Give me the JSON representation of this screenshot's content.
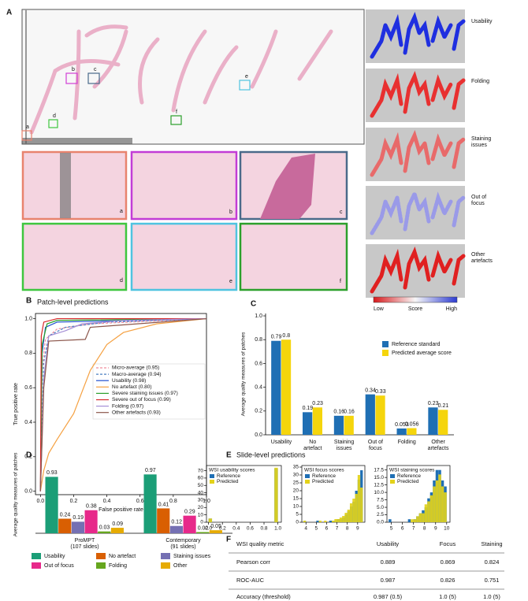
{
  "panel_labels": [
    "A",
    "B",
    "C",
    "D",
    "E",
    "F"
  ],
  "panel_a": {
    "region_labels": [
      "a",
      "b",
      "c",
      "d",
      "e",
      "f"
    ],
    "thumbnail_labels": [
      "a",
      "b",
      "c",
      "d",
      "e",
      "f"
    ],
    "heatmap_labels": [
      "Usability",
      "Folding",
      "Staining\nissues",
      "Out of\nfocus",
      "Other\nartefacts"
    ],
    "colorbar": {
      "low": "Low",
      "title": "Score",
      "high": "High"
    }
  },
  "slide_level_title": "Slide-level predictions",
  "chart_data": [
    {
      "type": "roc",
      "title": "Patch-level predictions",
      "x_label": "False positive rate",
      "y_label": "True positive rate",
      "xlim": [
        -0.03,
        1.0
      ],
      "ylim": [
        -0.02,
        1.03
      ],
      "xticks": [
        {
          "value": 0,
          "label": "0.0"
        },
        0.2,
        0.4,
        0.6,
        0.8,
        {
          "value": 1,
          "label": "1.0"
        }
      ],
      "yticks": [
        {
          "value": 0,
          "label": "0.0"
        },
        0.2,
        0.4,
        0.6,
        0.8,
        {
          "value": 1,
          "label": "1.0"
        }
      ],
      "series": [
        {
          "name": "Micro-average (0.95)",
          "color": "#f08c9c",
          "dash": true,
          "x": [
            0,
            0.01,
            0.03,
            0.1,
            0.3,
            1
          ],
          "values": [
            0,
            0.7,
            0.88,
            0.94,
            0.97,
            1
          ]
        },
        {
          "name": "Macro-average (0.94)",
          "color": "#4a7fc1",
          "dash": true,
          "x": [
            0,
            0.02,
            0.05,
            0.15,
            0.4,
            1
          ],
          "values": [
            0,
            0.75,
            0.9,
            0.95,
            0.98,
            1
          ]
        },
        {
          "name": "Usability (0.98)",
          "color": "#1f4fd1",
          "x": [
            0,
            0.01,
            0.03,
            0.1,
            1
          ],
          "values": [
            0,
            0.8,
            0.95,
            0.98,
            1
          ]
        },
        {
          "name": "No artefact (0.80)",
          "color": "#f5a142",
          "x": [
            0,
            0.02,
            0.05,
            0.1,
            0.2,
            0.3,
            0.4,
            0.5,
            0.7,
            1
          ],
          "values": [
            0,
            0.12,
            0.22,
            0.3,
            0.45,
            0.7,
            0.85,
            0.92,
            0.97,
            1
          ]
        },
        {
          "name": "Severe staining issues (0.97)",
          "color": "#2ca02c",
          "x": [
            0,
            0.01,
            0.04,
            0.1,
            1
          ],
          "values": [
            0,
            0.85,
            0.97,
            0.99,
            1
          ]
        },
        {
          "name": "Severe out of focus (0.99)",
          "color": "#d62728",
          "x": [
            0,
            0.005,
            0.02,
            0.1,
            1
          ],
          "values": [
            0,
            0.9,
            0.98,
            1,
            1
          ]
        },
        {
          "name": "Folding (0.97)",
          "color": "#a58fd6",
          "x": [
            0,
            0.02,
            0.05,
            0.15,
            0.25,
            0.5,
            1
          ],
          "values": [
            0,
            0.65,
            0.9,
            0.93,
            0.97,
            0.99,
            1
          ]
        },
        {
          "name": "Other artefacts (0.93)",
          "color": "#8c564b",
          "x": [
            0,
            0.02,
            0.05,
            0.27,
            0.3,
            1
          ],
          "values": [
            0,
            0.6,
            0.87,
            0.88,
            0.95,
            1
          ]
        }
      ]
    },
    {
      "type": "bar",
      "y_label": "Average quality measures of patches",
      "ylim": [
        0,
        1.02
      ],
      "yticks": [
        {
          "value": 0,
          "label": "0.0"
        },
        0.2,
        0.4,
        0.6,
        0.8,
        {
          "value": 1,
          "label": "1.0"
        }
      ],
      "categories": [
        "Usability",
        "No\nartefact",
        "Staining\nissues",
        "Out of\nfocus",
        "Folding",
        "Other\nartefacts"
      ],
      "series": [
        {
          "name": "Reference standard",
          "color": "#1f6fb4",
          "values": [
            0.79,
            0.19,
            0.16,
            0.34,
            0.053,
            0.23
          ]
        },
        {
          "name": "Predicted average score",
          "color": "#f5d50c",
          "values": [
            0.8,
            0.23,
            0.16,
            0.33,
            0.056,
            0.21
          ]
        }
      ]
    },
    {
      "type": "bar",
      "y_label": "Average quality measures of patches",
      "ylim": [
        0,
        1
      ],
      "categories": [
        "ProMPT\n(107 slides)",
        "Contemporary\n(91 slides)"
      ],
      "series": [
        {
          "name": "Usability",
          "color": "#1b9e77",
          "values": [
            0.93,
            0.97
          ]
        },
        {
          "name": "No artefact",
          "color": "#d95f02",
          "values": [
            0.24,
            0.41
          ]
        },
        {
          "name": "Staining issues",
          "color": "#7570b3",
          "values": [
            0.19,
            0.12
          ]
        },
        {
          "name": "Out of focus",
          "color": "#e7298a",
          "values": [
            0.38,
            0.29
          ]
        },
        {
          "name": "Folding",
          "color": "#66a61e",
          "values": [
            0.03,
            0.02
          ]
        },
        {
          "name": "Other",
          "color": "#e6ab02",
          "values": [
            0.09,
            0.05
          ]
        }
      ]
    },
    {
      "type": "histogram",
      "legend_title": "WSI usability scores",
      "xlim": [
        -0.03,
        1.05
      ],
      "ylim": [
        0,
        77
      ],
      "xticks": [
        {
          "value": 0,
          "label": "0.0"
        },
        0.2,
        0.4,
        0.6,
        0.8,
        {
          "value": 1,
          "label": "1.0"
        }
      ],
      "yticks": [
        0,
        10,
        20,
        30,
        40,
        50,
        60,
        70
      ],
      "bins": [
        0,
        0.05,
        0.1,
        0.15,
        0.2,
        0.25,
        0.3,
        0.35,
        0.4,
        0.45,
        0.5,
        0.55,
        0.6,
        0.65,
        0.7,
        0.75,
        0.8,
        0.85,
        0.9,
        0.95,
        1
      ],
      "series": [
        {
          "name": "Reference",
          "color": "#1f6fb4",
          "values": [
            5,
            0,
            0,
            0,
            0,
            0,
            0,
            0,
            0,
            0,
            0,
            0,
            0,
            0,
            0,
            0,
            0,
            0,
            0,
            73
          ]
        },
        {
          "name": "Predicted",
          "color": "#e3d21a",
          "values": [
            5,
            0,
            0,
            0,
            0,
            0,
            0,
            0,
            0,
            0,
            0,
            0,
            0,
            0,
            0,
            0,
            0,
            0,
            0,
            74
          ]
        }
      ]
    },
    {
      "type": "histogram",
      "legend_title": "WSI focus scores",
      "xlim": [
        3.6,
        9.7
      ],
      "ylim": [
        0,
        36
      ],
      "xticks": [
        4,
        5,
        6,
        7,
        8,
        9
      ],
      "yticks": [
        0,
        5,
        10,
        15,
        20,
        25,
        30,
        35
      ],
      "bins": [
        3.75,
        4,
        4.25,
        4.5,
        4.75,
        5,
        5.25,
        5.5,
        5.75,
        6,
        6.25,
        6.5,
        6.75,
        7,
        7.25,
        7.5,
        7.75,
        8,
        8.25,
        8.5,
        8.75,
        9,
        9.25,
        9.5
      ],
      "series": [
        {
          "name": "Reference",
          "color": "#1f6fb4",
          "values": [
            1,
            0,
            0,
            0,
            0,
            1,
            0,
            0,
            0,
            0,
            1,
            1,
            1,
            2,
            2,
            3,
            5,
            7,
            10,
            13,
            20,
            27,
            33
          ]
        },
        {
          "name": "Predicted",
          "color": "#e3d21a",
          "values": [
            1,
            0,
            0,
            0,
            0,
            0,
            1,
            0,
            1,
            0,
            0,
            1,
            2,
            2,
            3,
            4,
            6,
            8,
            12,
            15,
            18,
            30,
            22
          ]
        }
      ]
    },
    {
      "type": "histogram",
      "legend_title": "WSI staining scores",
      "xlim": [
        4.6,
        10.3
      ],
      "ylim": [
        0,
        19
      ],
      "xticks": [
        5,
        6,
        7,
        8,
        9,
        10
      ],
      "yticks": [
        {
          "value": 0,
          "label": "0.0"
        },
        2.5,
        {
          "value": 5,
          "label": "5.0"
        },
        7.5,
        {
          "value": 10,
          "label": "10.0"
        },
        12.5,
        {
          "value": 15,
          "label": "15.0"
        },
        17.5
      ],
      "bins": [
        4.75,
        5,
        5.25,
        5.5,
        5.75,
        6,
        6.25,
        6.5,
        6.75,
        7,
        7.25,
        7.5,
        7.75,
        8,
        8.25,
        8.5,
        8.75,
        9,
        9.25,
        9.5,
        9.75,
        10
      ],
      "series": [
        {
          "name": "Reference",
          "color": "#1f6fb4",
          "values": [
            1,
            0,
            0,
            0,
            0,
            0,
            0,
            1,
            0,
            1,
            2,
            3,
            4,
            5,
            8,
            10,
            14,
            17.5,
            17.5,
            14,
            12
          ]
        },
        {
          "name": "Predicted",
          "color": "#e3d21a",
          "values": [
            0,
            0,
            0,
            0,
            0,
            0,
            0,
            0,
            1,
            1,
            2,
            3,
            3,
            6,
            7,
            9,
            12,
            14,
            16,
            12,
            10
          ]
        }
      ]
    }
  ],
  "table": {
    "header": [
      "WSI quality metric",
      "Usability",
      "Focus",
      "Staining"
    ],
    "rows": [
      [
        "Pearson corr",
        "0.889",
        "0.869",
        "0.824"
      ],
      [
        "ROC-AUC",
        "0.987",
        "0.826",
        "0.751"
      ],
      [
        "Accuracy (threshold)",
        "0.987 (0.5)",
        "1.0 (5)",
        "1.0 (5)"
      ]
    ]
  }
}
